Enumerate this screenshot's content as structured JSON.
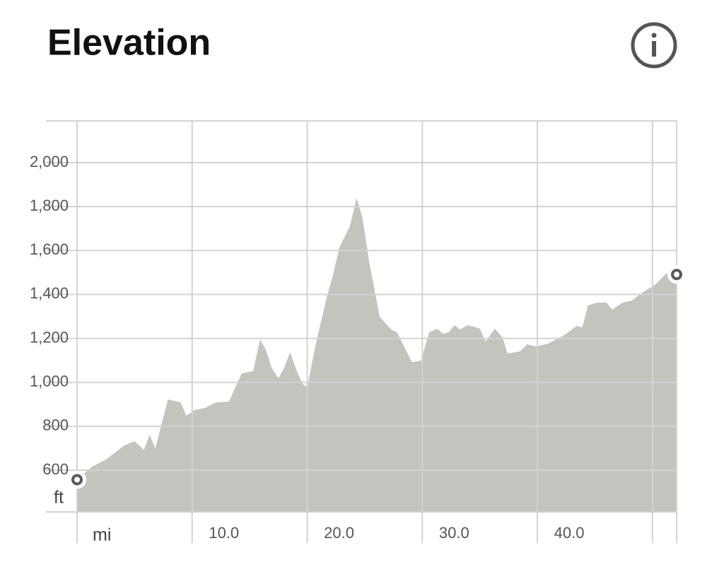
{
  "chart_data": {
    "type": "area",
    "title": "Elevation",
    "x_unit": "mi",
    "y_unit": "ft",
    "x": [
      0,
      1.3,
      2.5,
      4.1,
      5.0,
      5.8,
      6.3,
      6.8,
      7.9,
      9.0,
      9.5,
      10.2,
      11.1,
      12.1,
      13.2,
      14.3,
      15.3,
      15.9,
      16.4,
      16.9,
      17.5,
      18.0,
      18.5,
      19.1,
      19.6,
      20.0,
      20.7,
      21.7,
      22.2,
      22.8,
      23.7,
      24.3,
      24.8,
      25.4,
      26.3,
      27.3,
      27.8,
      29.1,
      29.9,
      30.6,
      31.3,
      31.8,
      32.3,
      32.8,
      33.3,
      33.9,
      34.5,
      35.0,
      35.5,
      36.3,
      37.0,
      37.4,
      38.5,
      39.1,
      39.9,
      40.9,
      41.9,
      42.5,
      43.4,
      43.9,
      44.4,
      45.2,
      46.0,
      46.5,
      47.4,
      48.2,
      49.1,
      50.2,
      51.2,
      52.1
    ],
    "values": [
      557,
      616,
      648,
      713,
      732,
      693,
      761,
      700,
      922,
      909,
      848,
      874,
      883,
      909,
      912,
      1041,
      1051,
      1195,
      1150,
      1067,
      1018,
      1067,
      1137,
      1051,
      993,
      977,
      1163,
      1388,
      1479,
      1614,
      1710,
      1839,
      1749,
      1543,
      1298,
      1240,
      1228,
      1092,
      1099,
      1228,
      1244,
      1221,
      1228,
      1260,
      1240,
      1260,
      1253,
      1244,
      1186,
      1244,
      1202,
      1131,
      1141,
      1173,
      1163,
      1176,
      1202,
      1221,
      1257,
      1250,
      1350,
      1363,
      1363,
      1331,
      1363,
      1372,
      1408,
      1443,
      1495,
      1491
    ],
    "color": "#c4c3be",
    "xlim": [
      0,
      52.1
    ],
    "ylim": [
      410,
      2190
    ],
    "xgrid": [
      0,
      10,
      20,
      30,
      40,
      50
    ],
    "xticks": [
      {
        "value": 10,
        "label": "10.0"
      },
      {
        "value": 20,
        "label": "20.0"
      },
      {
        "value": 30,
        "label": "30.0"
      },
      {
        "value": 40,
        "label": "40.0"
      }
    ],
    "yticks": [
      600,
      800,
      {
        "value": 1000,
        "label": "1,000"
      },
      {
        "value": 1200,
        "label": "1,200"
      },
      {
        "value": 1400,
        "label": "1,400"
      },
      {
        "value": 1600,
        "label": "1,600"
      },
      {
        "value": 1800,
        "label": "1,800"
      },
      {
        "value": 2000,
        "label": "2,000"
      }
    ],
    "grid": true
  }
}
